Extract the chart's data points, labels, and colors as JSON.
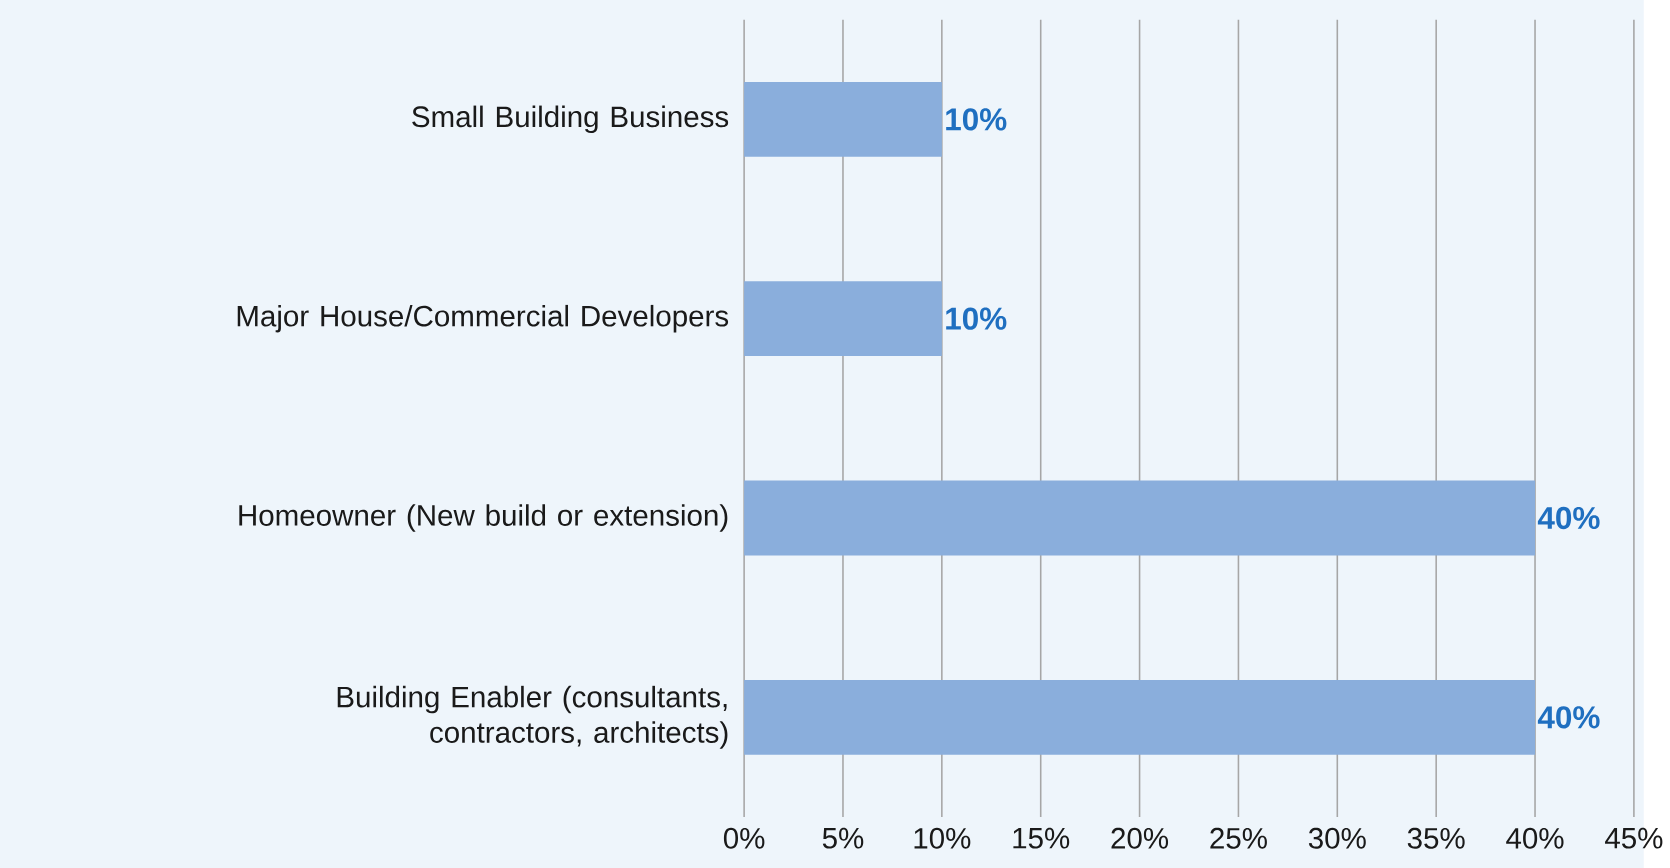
{
  "chart_data": {
    "type": "bar",
    "orientation": "horizontal",
    "categories": [
      "Small Building Business",
      "Major House/Commercial Developers",
      "Homeowner (New build or extension)",
      "Building Enabler (consultants, contractors, architects)"
    ],
    "values": [
      10,
      10,
      40,
      40
    ],
    "color": "#8aaedc",
    "value_labels": [
      "10%",
      "10%",
      "40%",
      "40%"
    ],
    "xlim": [
      0,
      45
    ],
    "xticks": [
      {
        "value": 0,
        "label": "0%"
      },
      {
        "value": 5,
        "label": "5%"
      },
      {
        "value": 10,
        "label": "10%"
      },
      {
        "value": 15,
        "label": "15%"
      },
      {
        "value": 20,
        "label": "20%"
      },
      {
        "value": 25,
        "label": "25%"
      },
      {
        "value": 30,
        "label": "30%"
      },
      {
        "value": 35,
        "label": "35%"
      },
      {
        "value": 40,
        "label": "40%"
      },
      {
        "value": 45,
        "label": "45%"
      }
    ],
    "grid": "x"
  }
}
